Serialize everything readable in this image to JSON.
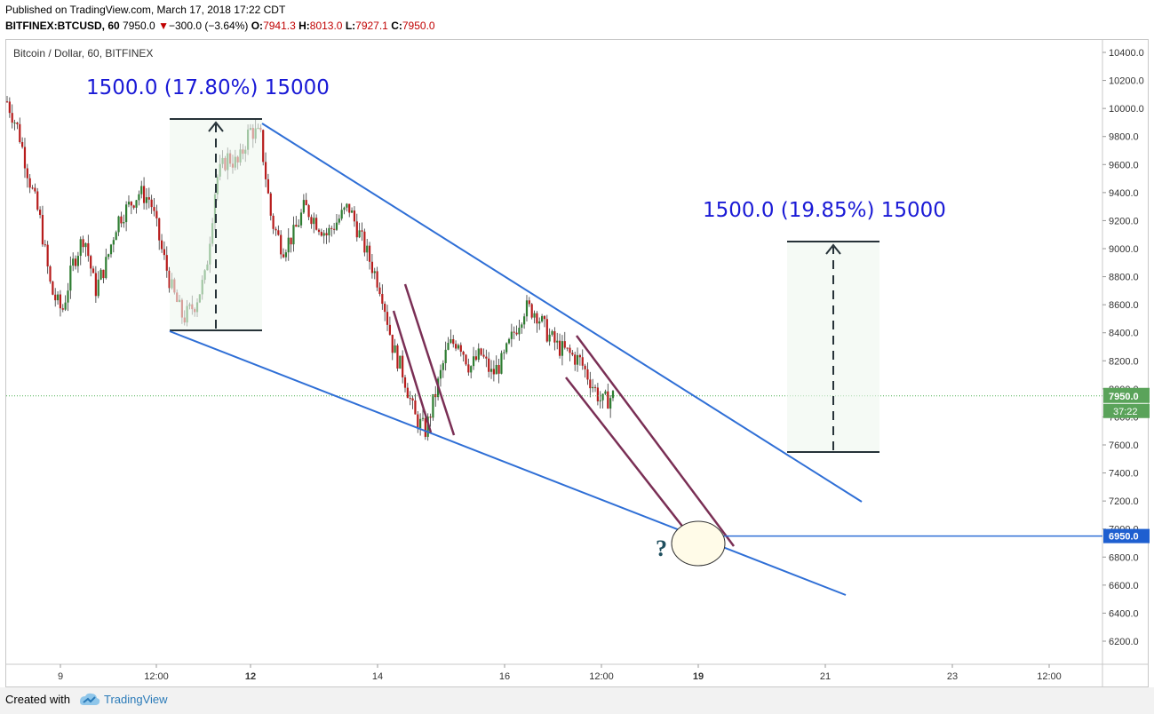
{
  "header": {
    "published": "Published on TradingView.com, March 17, 2018 17:22 CDT",
    "symbol": "BITFINEX:BTCUSD, 60",
    "last": "7950.0",
    "arrow": "▼",
    "change": "−300.0 (−3.64%)",
    "o_label": "O:",
    "o_value": "7941.3",
    "h_label": "H:",
    "h_value": "8013.0",
    "l_label": "L:",
    "l_value": "7927.1",
    "c_label": "C:",
    "c_value": "7950.0"
  },
  "chart_label": "Bitcoin / Dollar, 60, BITFINEX",
  "footer": {
    "created_with": "Created with",
    "brand": "TradingView"
  },
  "colors": {
    "up": "#2e7d32",
    "down": "#b71c1c",
    "trendline": "#2f6fd6",
    "channel": "#7a2f55",
    "measure_text": "#1a1ad6",
    "price_tag": "#5aa35a",
    "level_tag": "#1e5fd0"
  },
  "chart_data": {
    "type": "candlestick",
    "title": "Bitcoin / Dollar, 60, BITFINEX",
    "y_ticks": [
      "10400.0",
      "10200.0",
      "10000.0",
      "9800.0",
      "9600.0",
      "9400.0",
      "9200.0",
      "9000.0",
      "8800.0",
      "8600.0",
      "8400.0",
      "8200.0",
      "8000.0",
      "7800.0",
      "7600.0",
      "7400.0",
      "7200.0",
      "7000.0",
      "6800.0",
      "6600.0",
      "6400.0",
      "6200.0"
    ],
    "y_range": [
      6050,
      10500
    ],
    "x_ticks": [
      "9",
      "12:00",
      "12",
      "14",
      "16",
      "12:00",
      "19",
      "21",
      "23",
      "12:00"
    ],
    "current_price": "7950.0",
    "countdown": "37:22",
    "level_price": "6950.0",
    "annotations": {
      "measure_left": "1500.0 (17.80%) 15000",
      "measure_right": "1500.0 (19.85%) 15000",
      "question": "?"
    },
    "price_path": [
      10050,
      9850,
      9500,
      9200,
      8700,
      8550,
      8900,
      9100,
      8700,
      8900,
      9200,
      9300,
      9400,
      9350,
      9000,
      8700,
      8500,
      8600,
      8800,
      9500,
      9650,
      9600,
      9850,
      9800,
      9200,
      9000,
      9100,
      9300,
      9200,
      9100,
      9200,
      9300,
      9100,
      8900,
      8700,
      8300,
      8100,
      7800,
      7700,
      8000,
      8300,
      8350,
      8150,
      8250,
      8100,
      8200,
      8400,
      8580,
      8550,
      8400,
      8300,
      8250,
      8200,
      8050,
      7900,
      7950
    ]
  }
}
